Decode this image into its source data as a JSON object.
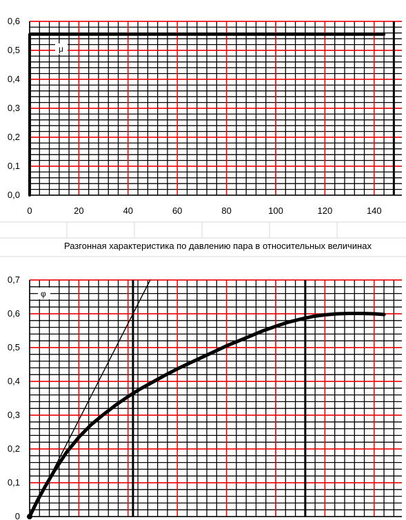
{
  "chart_data": [
    {
      "type": "line",
      "title": "",
      "xlabel": "",
      "ylabel": "",
      "xlim": [
        0,
        150
      ],
      "ylim": [
        0,
        0.6
      ],
      "x_ticks": [
        "0",
        "20",
        "40",
        "60",
        "80",
        "100",
        "120",
        "140"
      ],
      "y_ticks": [
        "0,0",
        "0,1",
        "0,2",
        "0,3",
        "0,4",
        "0,5",
        "0,6"
      ],
      "grid": true,
      "minor_grid_step": [
        4,
        0.02
      ],
      "red_grid_step": [
        20,
        0.1
      ],
      "series": [
        {
          "name": "μ",
          "x": [
            0,
            0,
            144
          ],
          "y": [
            0,
            0.555,
            0.555
          ]
        }
      ],
      "vertical_marker_x": 148
    },
    {
      "type": "line",
      "title": "Разгонная характеристика по давлению пара в относительных величинах",
      "xlabel": "",
      "ylabel": "",
      "xlim": [
        0,
        150
      ],
      "ylim": [
        0,
        0.7
      ],
      "x_ticks": [],
      "y_ticks": [
        "0",
        "0,1",
        "0,2",
        "0,3",
        "0,4",
        "0,5",
        "0,6",
        "0,7"
      ],
      "grid": true,
      "minor_grid_step": [
        4,
        0.02
      ],
      "red_grid_step": [
        20,
        0.1
      ],
      "series": [
        {
          "name": "φ",
          "x": [
            0,
            3,
            6,
            10,
            15,
            20,
            25,
            30,
            35,
            40,
            45,
            50,
            55,
            60,
            65,
            70,
            75,
            80,
            85,
            90,
            95,
            100,
            105,
            110,
            115,
            120,
            125,
            130,
            135,
            140,
            144
          ],
          "y": [
            0,
            0.045,
            0.085,
            0.135,
            0.19,
            0.235,
            0.272,
            0.302,
            0.33,
            0.355,
            0.378,
            0.398,
            0.418,
            0.437,
            0.454,
            0.471,
            0.488,
            0.505,
            0.52,
            0.535,
            0.55,
            0.563,
            0.575,
            0.584,
            0.592,
            0.597,
            0.6,
            0.601,
            0.601,
            0.6,
            0.598
          ]
        },
        {
          "name": "",
          "x": [
            0,
            49
          ],
          "y": [
            0,
            0.7
          ]
        }
      ],
      "vertical_marker_x": [
        42,
        112
      ]
    }
  ]
}
